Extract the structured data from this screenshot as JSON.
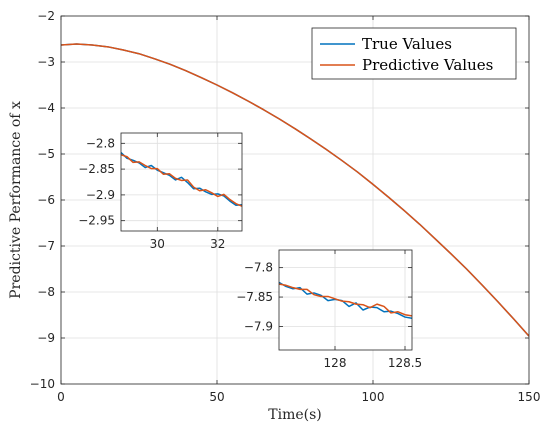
{
  "chart_data": [
    {
      "id": "main",
      "type": "line",
      "xlabel": "Time(s)",
      "ylabel": "Predictive Performance of x",
      "xlim": [
        0,
        150
      ],
      "ylim": [
        -10,
        -2
      ],
      "xticks": [
        0,
        50,
        100,
        150
      ],
      "yticks": [
        -2,
        -3,
        -4,
        -5,
        -6,
        -7,
        -8,
        -9,
        -10
      ],
      "xtick_labels": [
        "0",
        "50",
        "100",
        "150"
      ],
      "ytick_labels": [
        "−2",
        "−3",
        "−4",
        "−5",
        "−6",
        "−7",
        "−8",
        "−9",
        "−10"
      ],
      "grid": true,
      "legend_position": "top-right",
      "series": [
        {
          "name": "True Values",
          "color": "#0072BD",
          "x": [
            0,
            5,
            10,
            15,
            20,
            25,
            30,
            35,
            40,
            45,
            50,
            55,
            60,
            65,
            70,
            75,
            80,
            85,
            90,
            95,
            100,
            105,
            110,
            115,
            120,
            125,
            130,
            135,
            140,
            145,
            150
          ],
          "y": [
            -2.63,
            -2.61,
            -2.63,
            -2.67,
            -2.74,
            -2.82,
            -2.93,
            -3.05,
            -3.19,
            -3.34,
            -3.5,
            -3.67,
            -3.85,
            -4.04,
            -4.24,
            -4.45,
            -4.67,
            -4.9,
            -5.14,
            -5.39,
            -5.66,
            -5.94,
            -6.23,
            -6.53,
            -6.85,
            -7.17,
            -7.5,
            -7.85,
            -8.21,
            -8.58,
            -8.96
          ]
        },
        {
          "name": "Predictive Values",
          "color": "#D95319",
          "x": [
            0,
            5,
            10,
            15,
            20,
            25,
            30,
            35,
            40,
            45,
            50,
            55,
            60,
            65,
            70,
            75,
            80,
            85,
            90,
            95,
            100,
            105,
            110,
            115,
            120,
            125,
            130,
            135,
            140,
            145,
            150
          ],
          "y": [
            -2.63,
            -2.61,
            -2.63,
            -2.67,
            -2.74,
            -2.82,
            -2.93,
            -3.05,
            -3.19,
            -3.34,
            -3.5,
            -3.67,
            -3.85,
            -4.04,
            -4.24,
            -4.45,
            -4.67,
            -4.9,
            -5.14,
            -5.39,
            -5.66,
            -5.94,
            -6.23,
            -6.53,
            -6.85,
            -7.17,
            -7.5,
            -7.85,
            -8.21,
            -8.58,
            -8.96
          ]
        }
      ]
    },
    {
      "id": "inset1",
      "type": "line",
      "xlim": [
        28.8,
        32.8
      ],
      "ylim": [
        -2.97,
        -2.78
      ],
      "xticks": [
        30,
        32
      ],
      "yticks": [
        -2.8,
        -2.85,
        -2.9,
        -2.95
      ],
      "xtick_labels": [
        "30",
        "32"
      ],
      "ytick_labels": [
        "−2.8",
        "−2.85",
        "−2.9",
        "−2.95"
      ],
      "grid": true,
      "series": [
        {
          "name": "True Values",
          "color": "#0072BD",
          "x": [
            28.8,
            29.0,
            29.2,
            29.4,
            29.6,
            29.8,
            30.0,
            30.2,
            30.4,
            30.6,
            30.8,
            31.0,
            31.2,
            31.4,
            31.6,
            31.8,
            32.0,
            32.2,
            32.4,
            32.6,
            32.8
          ],
          "y": [
            -2.818,
            -2.829,
            -2.833,
            -2.838,
            -2.847,
            -2.843,
            -2.852,
            -2.857,
            -2.862,
            -2.871,
            -2.866,
            -2.876,
            -2.888,
            -2.887,
            -2.894,
            -2.899,
            -2.898,
            -2.902,
            -2.912,
            -2.92,
            -2.919
          ]
        },
        {
          "name": "Predictive Values",
          "color": "#D95319",
          "x": [
            28.8,
            29.0,
            29.2,
            29.4,
            29.6,
            29.8,
            30.0,
            30.2,
            30.4,
            30.6,
            30.8,
            31.0,
            31.2,
            31.4,
            31.6,
            31.8,
            32.0,
            32.2,
            32.4,
            32.6,
            32.8
          ],
          "y": [
            -2.822,
            -2.826,
            -2.837,
            -2.836,
            -2.843,
            -2.849,
            -2.849,
            -2.86,
            -2.859,
            -2.868,
            -2.872,
            -2.871,
            -2.885,
            -2.892,
            -2.89,
            -2.896,
            -2.903,
            -2.899,
            -2.909,
            -2.917,
            -2.922
          ]
        }
      ]
    },
    {
      "id": "inset2",
      "type": "line",
      "xlim": [
        127.6,
        128.55
      ],
      "ylim": [
        -7.94,
        -7.77
      ],
      "xticks": [
        128,
        128.5
      ],
      "yticks": [
        -7.8,
        -7.85,
        -7.9
      ],
      "xtick_labels": [
        "128",
        "128.5"
      ],
      "ytick_labels": [
        "−7.8",
        "−7.85",
        "−7.9"
      ],
      "grid": true,
      "series": [
        {
          "name": "True Values",
          "color": "#0072BD",
          "x": [
            127.6,
            127.65,
            127.7,
            127.75,
            127.8,
            127.85,
            127.9,
            127.95,
            128.0,
            128.05,
            128.1,
            128.15,
            128.2,
            128.25,
            128.3,
            128.35,
            128.4,
            128.45,
            128.5,
            128.55
          ],
          "y": [
            -7.825,
            -7.832,
            -7.836,
            -7.834,
            -7.845,
            -7.843,
            -7.847,
            -7.856,
            -7.854,
            -7.856,
            -7.866,
            -7.86,
            -7.872,
            -7.867,
            -7.868,
            -7.875,
            -7.874,
            -7.878,
            -7.884,
            -7.886
          ]
        },
        {
          "name": "Predictive Values",
          "color": "#D95319",
          "x": [
            127.6,
            127.65,
            127.7,
            127.75,
            127.8,
            127.85,
            127.9,
            127.95,
            128.0,
            128.05,
            128.1,
            128.15,
            128.2,
            128.25,
            128.3,
            128.35,
            128.4,
            128.45,
            128.5,
            128.55
          ],
          "y": [
            -7.828,
            -7.83,
            -7.834,
            -7.837,
            -7.837,
            -7.846,
            -7.849,
            -7.849,
            -7.853,
            -7.857,
            -7.858,
            -7.862,
            -7.863,
            -7.868,
            -7.862,
            -7.866,
            -7.877,
            -7.875,
            -7.88,
            -7.882
          ]
        }
      ]
    }
  ]
}
